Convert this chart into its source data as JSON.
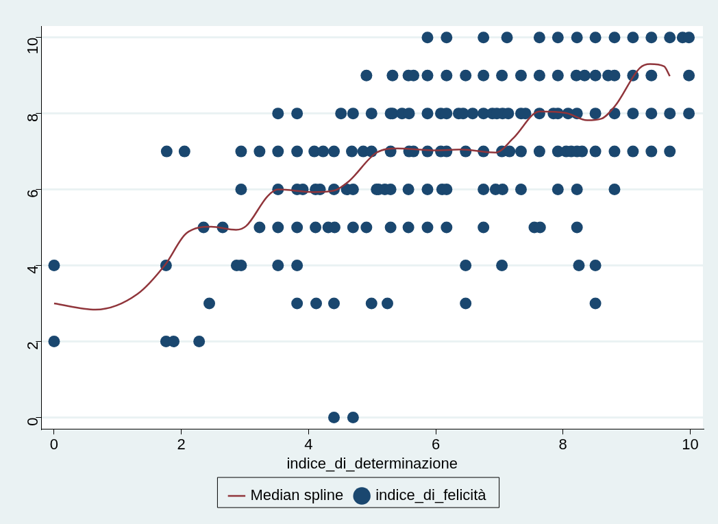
{
  "chart_data": {
    "type": "scatter",
    "xlabel": "indice_di_determinazione",
    "xlim": [
      -0.2,
      10.2
    ],
    "ylim": [
      -0.3,
      10.3
    ],
    "xticks": [
      0,
      2,
      4,
      6,
      8,
      10
    ],
    "yticks": [
      0,
      2,
      4,
      6,
      8,
      10
    ],
    "grid": "y",
    "legend": "bottom",
    "series": [
      {
        "name": "indice_di_felicità",
        "marker": "circle",
        "color": "#1a476f",
        "x": [
          5.87,
          6.17,
          6.75,
          7.12,
          7.63,
          7.92,
          8.22,
          8.51,
          8.81,
          9.1,
          9.39,
          9.68,
          9.88,
          9.98,
          4.91,
          5.32,
          5.57,
          5.65,
          5.87,
          6.17,
          6.47,
          6.75,
          7.04,
          7.34,
          7.63,
          7.92,
          8.21,
          8.34,
          8.51,
          8.71,
          8.81,
          9.1,
          9.39,
          9.98,
          3.52,
          3.82,
          4.51,
          4.7,
          4.99,
          5.29,
          5.32,
          5.47,
          5.58,
          5.87,
          6.08,
          6.17,
          6.36,
          6.43,
          6.58,
          6.75,
          6.89,
          6.96,
          7.05,
          7.14,
          7.34,
          7.41,
          7.63,
          7.85,
          7.92,
          8.08,
          8.22,
          8.51,
          8.81,
          9.1,
          9.39,
          9.68,
          9.98,
          1.77,
          2.05,
          2.94,
          3.23,
          3.52,
          3.82,
          4.09,
          4.23,
          4.4,
          4.68,
          4.86,
          4.99,
          5.29,
          5.58,
          5.65,
          5.87,
          6.08,
          6.17,
          6.47,
          6.75,
          7.04,
          7.16,
          7.34,
          7.63,
          7.92,
          8.05,
          8.13,
          8.22,
          8.3,
          8.51,
          8.81,
          9.1,
          9.39,
          9.68,
          2.94,
          3.52,
          3.82,
          3.91,
          4.11,
          4.18,
          4.4,
          4.6,
          4.7,
          5.07,
          5.1,
          5.2,
          5.29,
          5.57,
          5.87,
          6.1,
          6.17,
          6.75,
          6.94,
          7.05,
          7.34,
          7.92,
          8.22,
          8.81,
          2.35,
          2.65,
          3.23,
          3.52,
          3.82,
          4.11,
          4.31,
          4.41,
          4.7,
          4.91,
          5.29,
          5.57,
          5.87,
          6.17,
          6.75,
          7.55,
          7.64,
          8.22,
          0,
          1.76,
          2.87,
          2.94,
          3.52,
          3.82,
          6.47,
          7.04,
          8.25,
          8.51,
          2.44,
          3.82,
          4.12,
          4.4,
          4.99,
          5.24,
          6.47,
          8.51,
          0,
          1.76,
          1.88,
          2.28,
          4.4,
          4.7
        ],
        "values": [
          10,
          10,
          10,
          10,
          10,
          10,
          10,
          10,
          10,
          10,
          10,
          10,
          10,
          10,
          9,
          9,
          9,
          9,
          9,
          9,
          9,
          9,
          9,
          9,
          9,
          9,
          9,
          9,
          9,
          9,
          9,
          9,
          9,
          9,
          8,
          8,
          8,
          8,
          8,
          8,
          8,
          8,
          8,
          8,
          8,
          8,
          8,
          8,
          8,
          8,
          8,
          8,
          8,
          8,
          8,
          8,
          8,
          8,
          8,
          8,
          8,
          8,
          8,
          8,
          8,
          8,
          8,
          7,
          7,
          7,
          7,
          7,
          7,
          7,
          7,
          7,
          7,
          7,
          7,
          7,
          7,
          7,
          7,
          7,
          7,
          7,
          7,
          7,
          7,
          7,
          7,
          7,
          7,
          7,
          7,
          7,
          7,
          7,
          7,
          7,
          7,
          6,
          6,
          6,
          6,
          6,
          6,
          6,
          6,
          6,
          6,
          6,
          6,
          6,
          6,
          6,
          6,
          6,
          6,
          6,
          6,
          6,
          6,
          6,
          6,
          5,
          5,
          5,
          5,
          5,
          5,
          5,
          5,
          5,
          5,
          5,
          5,
          5,
          5,
          5,
          5,
          5,
          5,
          4,
          4,
          4,
          4,
          4,
          4,
          4,
          4,
          4,
          4,
          3,
          3,
          3,
          3,
          3,
          3,
          3,
          3,
          2,
          2,
          2,
          2,
          0,
          0
        ]
      },
      {
        "name": "Median spline",
        "type": "line",
        "marker": "none",
        "line_style": "solid",
        "color": "#90353b",
        "x": [
          0,
          0.65,
          1.31,
          1.75,
          2.08,
          2.47,
          2.86,
          3.02,
          3.36,
          3.52,
          4.07,
          4.4,
          4.63,
          5.07,
          5.4,
          5.95,
          6.39,
          6.94,
          7.22,
          7.63,
          8.05,
          8.38,
          8.6,
          8.82,
          9.21,
          9.37,
          9.59,
          9.68
        ],
        "values": [
          3.0,
          2.84,
          3.25,
          4.03,
          4.85,
          5.02,
          4.94,
          5.04,
          5.83,
          6.0,
          5.93,
          5.97,
          6.21,
          6.97,
          7.08,
          7.03,
          7.05,
          6.97,
          7.35,
          8.05,
          8.01,
          7.82,
          7.86,
          8.2,
          9.2,
          9.3,
          9.24,
          8.98
        ]
      }
    ]
  }
}
